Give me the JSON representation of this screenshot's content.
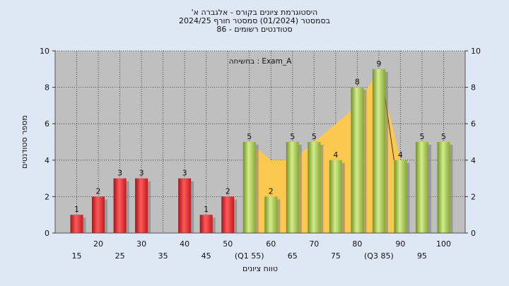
{
  "chart_data": {
    "type": "bar",
    "title_lines": [
      "היסטוגרמת ציונים בקורס - אלגברה א'",
      "בסמסטר  (01/2024)  סמסטר חורף 2024/25",
      "סטודנטים רשומים - 86"
    ],
    "annotation": "בחשיחה : Exam_A",
    "ylabel": "מספר סטודנטים",
    "xlabel": "טווח ציונים",
    "ylim": [
      0,
      10
    ],
    "yticks": [
      0,
      2,
      4,
      6,
      8,
      10
    ],
    "grid": true,
    "x_tick_labels": [
      {
        "pos": 15,
        "text": "15",
        "row": 2
      },
      {
        "pos": 20,
        "text": "20",
        "row": 1
      },
      {
        "pos": 25,
        "text": "25",
        "row": 2
      },
      {
        "pos": 30,
        "text": "30",
        "row": 1
      },
      {
        "pos": 35,
        "text": "35",
        "row": 2
      },
      {
        "pos": 40,
        "text": "40",
        "row": 1
      },
      {
        "pos": 45,
        "text": "45",
        "row": 2
      },
      {
        "pos": 50,
        "text": "50",
        "row": 1
      },
      {
        "pos": 55,
        "text": "(Q1 55)",
        "row": 2
      },
      {
        "pos": 60,
        "text": "60",
        "row": 1
      },
      {
        "pos": 65,
        "text": "65",
        "row": 2
      },
      {
        "pos": 70,
        "text": "70",
        "row": 1
      },
      {
        "pos": 75,
        "text": "75",
        "row": 2
      },
      {
        "pos": 80,
        "text": "80",
        "row": 1
      },
      {
        "pos": 85,
        "text": "(Q3 85)",
        "row": 2
      },
      {
        "pos": 90,
        "text": "90",
        "row": 1
      },
      {
        "pos": 95,
        "text": "95",
        "row": 2
      },
      {
        "pos": 100,
        "text": "100",
        "row": 1
      }
    ],
    "bars": [
      {
        "x": 15,
        "value": 1,
        "group": "red"
      },
      {
        "x": 20,
        "value": 2,
        "group": "red"
      },
      {
        "x": 25,
        "value": 3,
        "group": "red"
      },
      {
        "x": 30,
        "value": 3,
        "group": "red"
      },
      {
        "x": 40,
        "value": 3,
        "group": "red"
      },
      {
        "x": 45,
        "value": 1,
        "group": "red"
      },
      {
        "x": 50,
        "value": 2,
        "group": "red"
      },
      {
        "x": 55,
        "value": 5,
        "group": "green"
      },
      {
        "x": 60,
        "value": 2,
        "group": "green"
      },
      {
        "x": 65,
        "value": 5,
        "group": "green"
      },
      {
        "x": 70,
        "value": 5,
        "group": "green"
      },
      {
        "x": 75,
        "value": 4,
        "group": "green"
      },
      {
        "x": 80,
        "value": 8,
        "group": "green"
      },
      {
        "x": 85,
        "value": 9,
        "group": "green"
      },
      {
        "x": 90,
        "value": 4,
        "group": "green"
      },
      {
        "x": 95,
        "value": 5,
        "group": "green"
      },
      {
        "x": 100,
        "value": 5,
        "group": "green"
      }
    ],
    "area_points": [
      [
        55,
        5
      ],
      [
        60,
        4
      ],
      [
        65,
        4
      ],
      [
        70,
        5
      ],
      [
        75,
        6
      ],
      [
        80,
        7
      ],
      [
        85,
        9
      ],
      [
        90,
        4
      ]
    ],
    "colors": {
      "background": "#dde8f4",
      "plot_bg": "#bfbfbf",
      "grid": "#2a2a2a",
      "bar_red": "#e8262e",
      "bar_green": "#a3c74a",
      "area": "#ffc94a"
    }
  }
}
